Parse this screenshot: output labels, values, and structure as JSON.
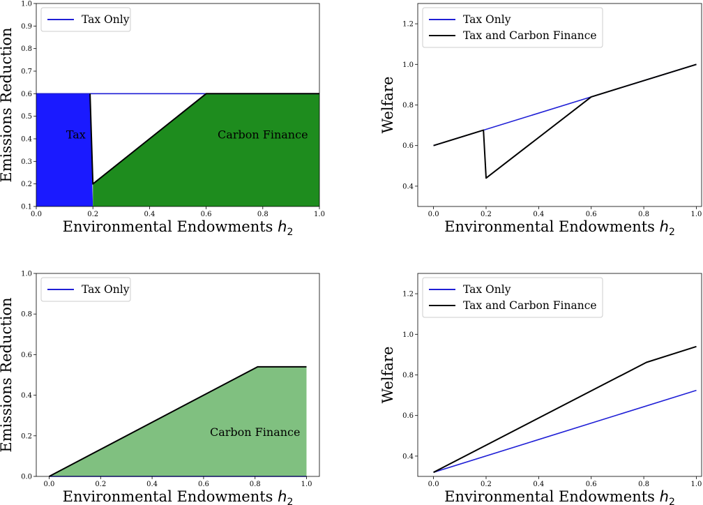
{
  "colors": {
    "tax_only": "#1f1fd6",
    "tax_and_carbon": "#000000",
    "tax_fill": "#1a1aff",
    "carbon_fill_dark": "#1e8c1e",
    "carbon_fill_light": "#80c080"
  },
  "chart_data": [
    {
      "type": "area",
      "xlabel": "Environmental Endowments",
      "xlabel_symbol": "h",
      "xlabel_sub": "2",
      "ylabel": "Emissions Reduction",
      "xlim": [
        0.0,
        1.0
      ],
      "ylim": [
        0.1,
        1.0
      ],
      "xticks": [
        "0.0",
        "0.2",
        "0.4",
        "0.6",
        "0.8",
        "1.0"
      ],
      "yticks": [
        "0.1",
        "0.2",
        "0.3",
        "0.4",
        "0.5",
        "0.6",
        "0.7",
        "0.8",
        "0.9",
        "1.0"
      ],
      "legend": {
        "position": "upper-left",
        "entries": [
          "Tax Only"
        ]
      },
      "series": [
        {
          "name": "Tax Only",
          "x": [
            0.0,
            1.0
          ],
          "y": [
            0.6,
            0.6
          ]
        },
        {
          "x": [
            0.19,
            0.2,
            0.6,
            1.0
          ],
          "y": [
            0.6,
            0.2,
            0.6,
            0.6
          ]
        }
      ],
      "regions": [
        {
          "label": "Tax",
          "fill": "tax_fill",
          "x": [
            0.0,
            0.19,
            0.2,
            0.0
          ],
          "y": [
            0.6,
            0.6,
            0.1,
            0.1
          ],
          "label_at": [
            0.14,
            0.42
          ]
        },
        {
          "label": "Carbon Finance",
          "fill": "carbon_fill_dark",
          "x": [
            0.2,
            0.2,
            0.6,
            1.0,
            1.0
          ],
          "y": [
            0.1,
            0.2,
            0.6,
            0.6,
            0.1
          ],
          "label_at": [
            0.8,
            0.42
          ]
        }
      ]
    },
    {
      "type": "line",
      "xlabel": "Environmental Endowments",
      "xlabel_symbol": "h",
      "xlabel_sub": "2",
      "ylabel": "Welfare",
      "xlim": [
        -0.06,
        1.02
      ],
      "ylim": [
        0.3,
        1.3
      ],
      "xticks": [
        "0.0",
        "0.2",
        "0.4",
        "0.6",
        "0.8",
        "1.0"
      ],
      "yticks": [
        "0.4",
        "0.6",
        "0.8",
        "1.0",
        "1.2"
      ],
      "legend": {
        "position": "upper-left",
        "entries": [
          "Tax Only",
          "Tax and Carbon Finance"
        ]
      },
      "series": [
        {
          "name": "Tax Only",
          "x": [
            0.0,
            0.6,
            1.0
          ],
          "y": [
            0.6,
            0.84,
            1.0
          ]
        },
        {
          "name": "Tax and Carbon Finance",
          "x": [
            0.0,
            0.19,
            0.2,
            0.6,
            1.0
          ],
          "y": [
            0.6,
            0.676,
            0.44,
            0.84,
            1.0
          ]
        }
      ]
    },
    {
      "type": "area",
      "xlabel": "Environmental Endowments",
      "xlabel_symbol": "h",
      "xlabel_sub": "2",
      "ylabel": "Emissions Reduction",
      "xlim": [
        -0.05,
        1.05
      ],
      "ylim": [
        0.0,
        1.0
      ],
      "xticks": [
        "0.0",
        "0.2",
        "0.4",
        "0.6",
        "0.8",
        "1.0"
      ],
      "yticks": [
        "0.0",
        "0.2",
        "0.4",
        "0.6",
        "0.8",
        "1.0"
      ],
      "legend": {
        "position": "upper-left",
        "entries": [
          "Tax Only"
        ]
      },
      "series": [
        {
          "name": "Tax Only",
          "x": [
            0.0,
            1.0
          ],
          "y": [
            0.0,
            0.0
          ]
        },
        {
          "x": [
            0.0,
            0.81,
            1.0
          ],
          "y": [
            0.0,
            0.54,
            0.54
          ]
        }
      ],
      "regions": [
        {
          "label": "Carbon Finance",
          "fill": "carbon_fill_light",
          "x": [
            0.0,
            0.81,
            1.0,
            1.0
          ],
          "y": [
            0.0,
            0.54,
            0.54,
            0.0
          ],
          "label_at": [
            0.8,
            0.22
          ]
        }
      ]
    },
    {
      "type": "line",
      "xlabel": "Environmental Endowments",
      "xlabel_symbol": "h",
      "xlabel_sub": "2",
      "ylabel": "Welfare",
      "xlim": [
        -0.06,
        1.02
      ],
      "ylim": [
        0.3,
        1.3
      ],
      "xticks": [
        "0.0",
        "0.2",
        "0.4",
        "0.6",
        "0.8",
        "1.0"
      ],
      "yticks": [
        "0.4",
        "0.6",
        "0.8",
        "1.0",
        "1.2"
      ],
      "legend": {
        "position": "upper-left",
        "entries": [
          "Tax Only",
          "Tax and Carbon Finance"
        ]
      },
      "series": [
        {
          "name": "Tax Only",
          "x": [
            0.0,
            1.0
          ],
          "y": [
            0.32,
            0.724
          ]
        },
        {
          "name": "Tax and Carbon Finance",
          "x": [
            0.0,
            0.81,
            1.0
          ],
          "y": [
            0.32,
            0.862,
            0.94
          ]
        }
      ]
    }
  ]
}
